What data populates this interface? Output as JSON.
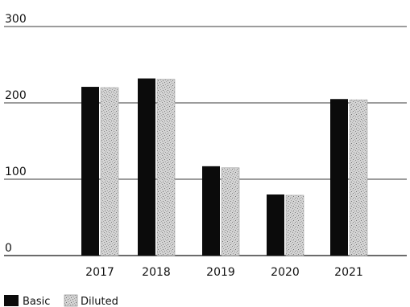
{
  "chart_data": {
    "type": "bar",
    "categories": [
      "2017",
      "2018",
      "2019",
      "2020",
      "2021"
    ],
    "series": [
      {
        "name": "Basic",
        "values": [
          221,
          232,
          117,
          80,
          205
        ]
      },
      {
        "name": "Diluted",
        "values": [
          220,
          231,
          115,
          79,
          204
        ]
      }
    ],
    "y_ticks": [
      "0",
      "100",
      "200",
      "300"
    ],
    "ylim": [
      0,
      300
    ],
    "grid": true,
    "legend": "bottom-left",
    "colors": {
      "basic": "#0b0b0b",
      "diluted": "#c9c9c9",
      "grid": "#3a3a3a"
    }
  }
}
